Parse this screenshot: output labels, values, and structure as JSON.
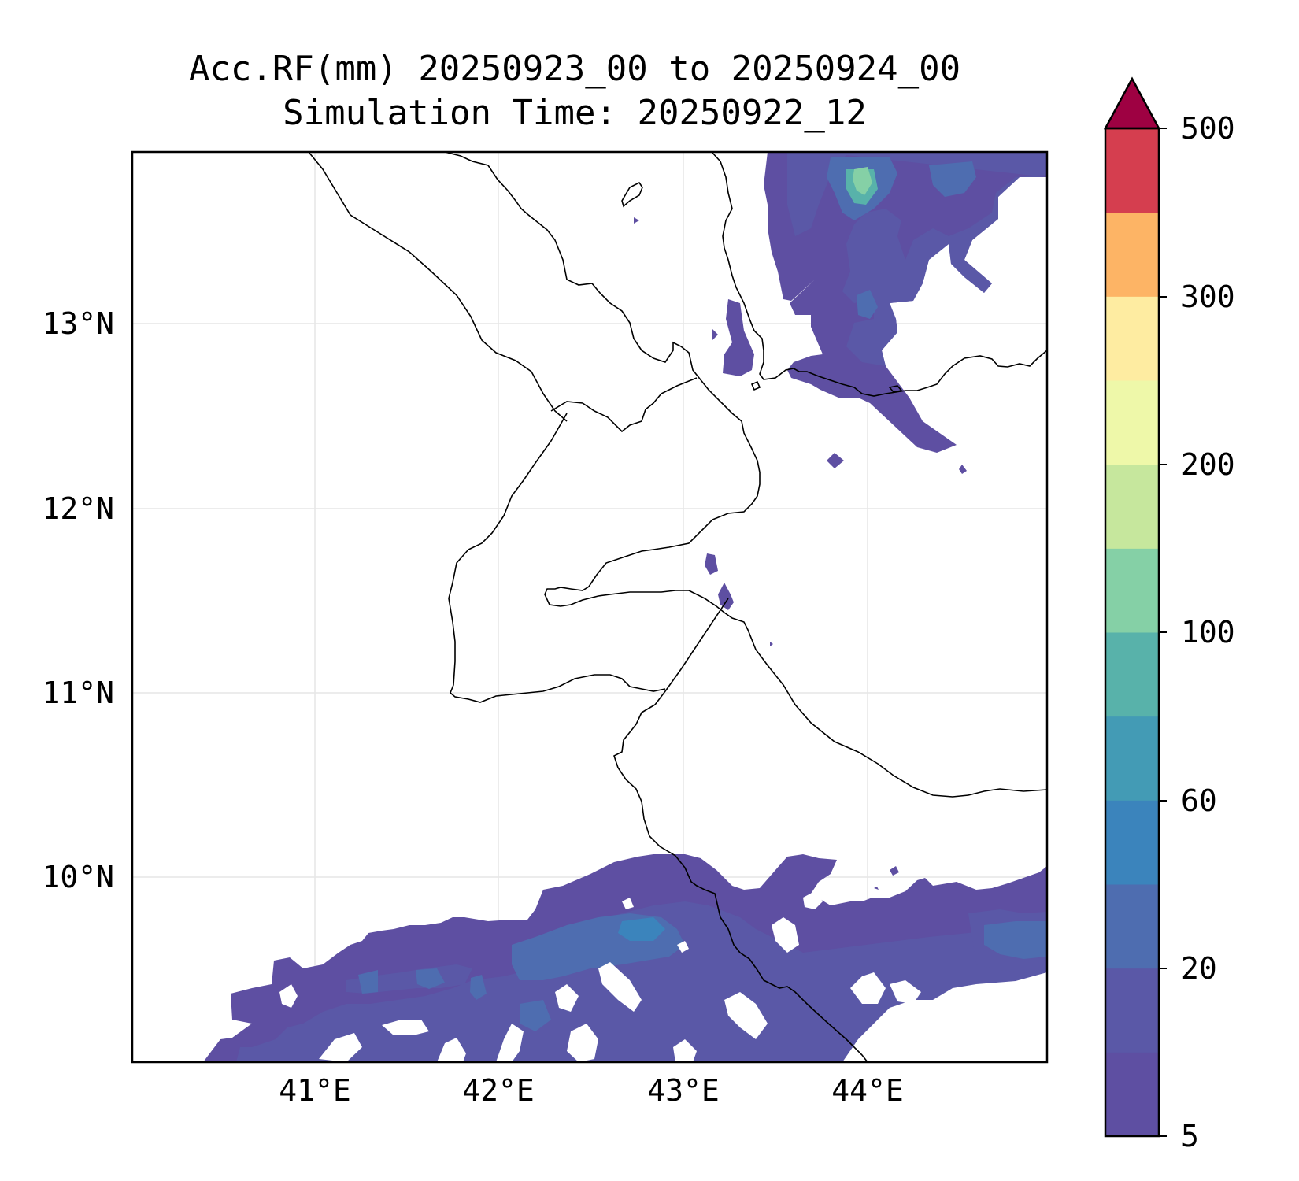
{
  "title": {
    "line1": "Acc.RF(mm) 20250923_00 to 20250924_00",
    "line2": "Simulation Time: 20250922_12"
  },
  "map": {
    "lat_labels": [
      "13°N",
      "12°N",
      "11°N",
      "10°N"
    ],
    "lon_labels": [
      "41°E",
      "42°E",
      "43°E",
      "44°E"
    ],
    "lat_range": [
      9.05,
      13.93
    ],
    "lon_range": [
      40.0,
      44.95
    ],
    "grid": true
  },
  "colorbar": {
    "tick_labels": [
      "5",
      "20",
      "60",
      "100",
      "200",
      "300",
      "500"
    ],
    "extend": "max",
    "colors": [
      "#5e4fa2",
      "#5a58a7",
      "#4e6db0",
      "#3b84bc",
      "#439bb5",
      "#58b2aa",
      "#85d0a6",
      "#c6e79d",
      "#eef8a9",
      "#feeca1",
      "#fdb465",
      "#d53e4f",
      "#9e0142"
    ]
  }
}
